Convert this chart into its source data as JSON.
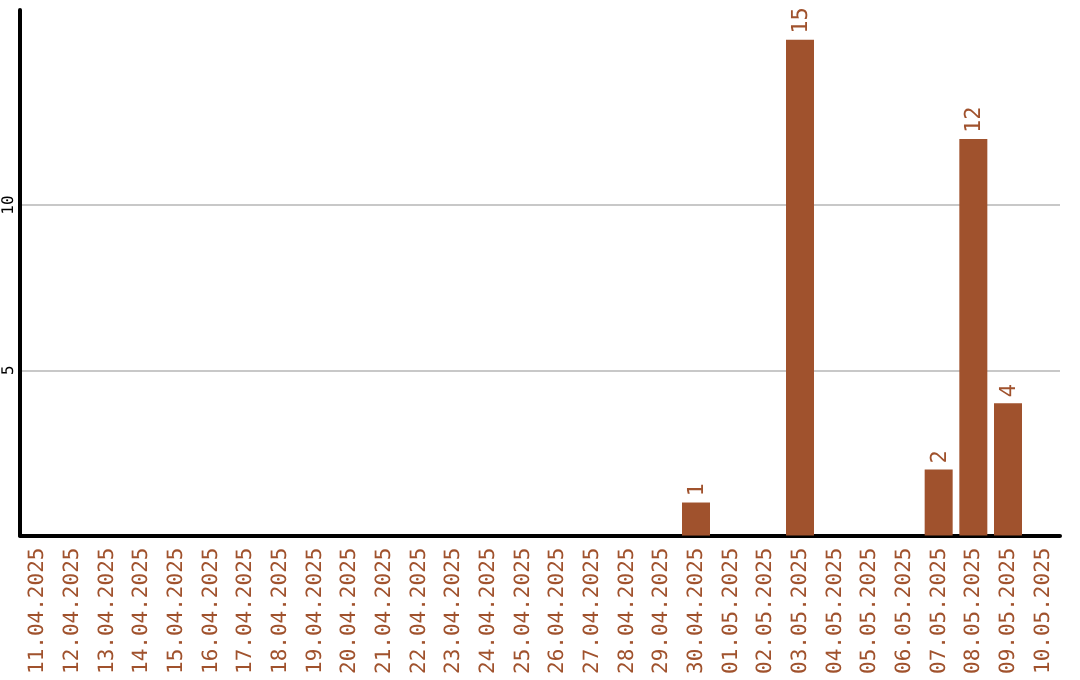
{
  "chart_data": {
    "type": "bar",
    "categories": [
      "11.04.2025",
      "12.04.2025",
      "13.04.2025",
      "14.04.2025",
      "15.04.2025",
      "16.04.2025",
      "17.04.2025",
      "18.04.2025",
      "19.04.2025",
      "20.04.2025",
      "21.04.2025",
      "22.04.2025",
      "23.04.2025",
      "24.04.2025",
      "25.04.2025",
      "26.04.2025",
      "27.04.2025",
      "28.04.2025",
      "29.04.2025",
      "30.04.2025",
      "01.05.2025",
      "02.05.2025",
      "03.05.2025",
      "04.05.2025",
      "05.05.2025",
      "06.05.2025",
      "07.05.2025",
      "08.05.2025",
      "09.05.2025",
      "10.05.2025"
    ],
    "values": [
      0,
      0,
      0,
      0,
      0,
      0,
      0,
      0,
      0,
      0,
      0,
      0,
      0,
      0,
      0,
      0,
      0,
      0,
      0,
      1,
      0,
      0,
      15,
      0,
      0,
      0,
      2,
      12,
      4,
      0
    ],
    "value_labels": [
      null,
      null,
      null,
      null,
      null,
      null,
      null,
      null,
      null,
      null,
      null,
      null,
      null,
      null,
      null,
      null,
      null,
      null,
      null,
      "1",
      null,
      null,
      "15",
      null,
      null,
      null,
      "2",
      "12",
      "4",
      null
    ],
    "color": "#a0522d",
    "ylim": [
      0,
      15.9
    ],
    "yticks": [
      {
        "value": 0,
        "label": null
      },
      5,
      10
    ],
    "grid": "y"
  }
}
